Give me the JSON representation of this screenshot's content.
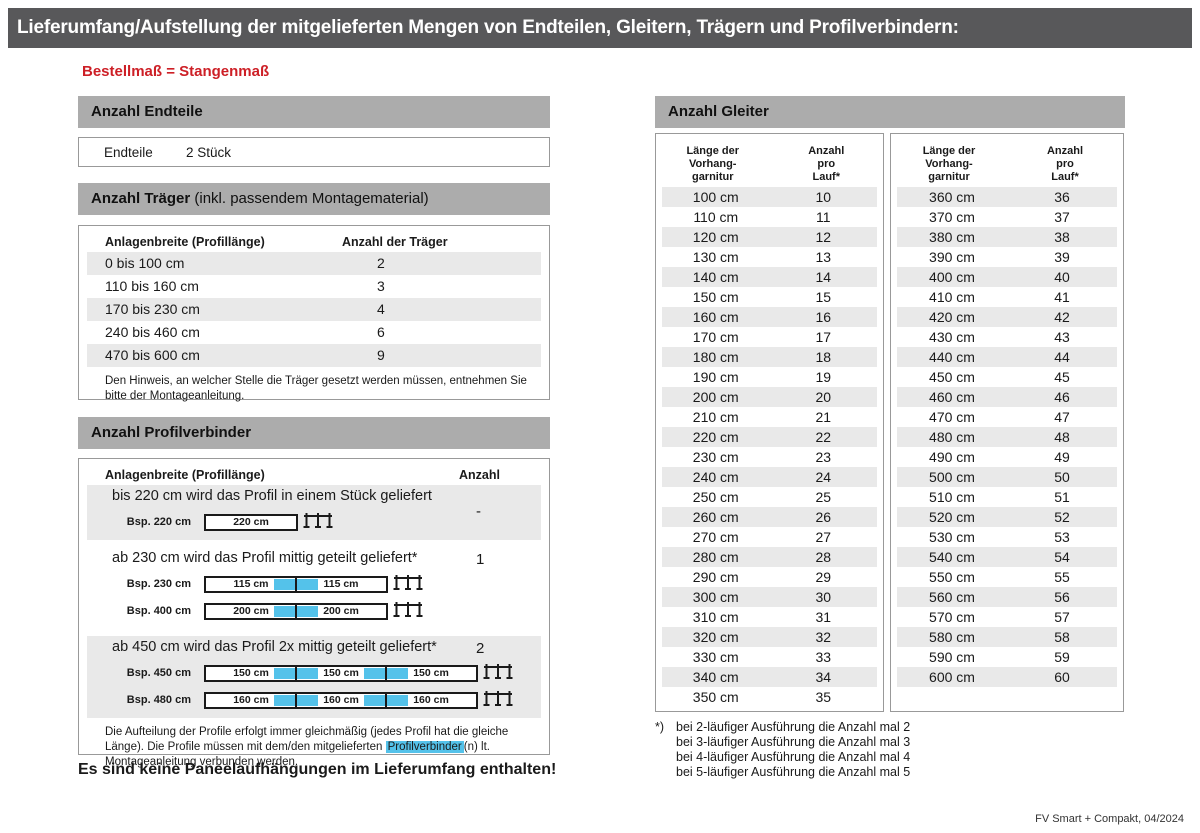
{
  "page": {
    "title": "Lieferumfang/Aufstellung der mitgelieferten Mengen von Endteilen, Gleitern, Trägern und Profilverbindern:",
    "subtitle": "Bestellmaß = Stangenmaß",
    "no_panel_note": "Es sind keine Paneelaufhängungen im Lieferumfang enthalten!",
    "footer": "FV Smart + Compakt, 04/2024"
  },
  "colors": {
    "title_bar_bg": "#58585a",
    "section_bar_bg": "#acacac",
    "row_stripe": "#e9e9e9",
    "accent_red": "#cd1f26",
    "connector_blue": "#54c2ea"
  },
  "endteile": {
    "section_title": "Anzahl Endteile",
    "label": "Endteile",
    "value": "2 Stück"
  },
  "traeger": {
    "section_title_bold": "Anzahl Träger",
    "section_title_rest": " (inkl. passendem Montagematerial)",
    "col1": "Anlagenbreite (Profillänge)",
    "col2": "Anzahl der Träger",
    "rows": [
      {
        "range": "0 bis 100 cm",
        "count": "2"
      },
      {
        "range": "110 bis 160 cm",
        "count": "3"
      },
      {
        "range": "170 bis 230 cm",
        "count": "4"
      },
      {
        "range": "240 bis 460 cm",
        "count": "6"
      },
      {
        "range": "470 bis 600 cm",
        "count": "9"
      }
    ],
    "note": "Den Hinweis, an welcher Stelle die Träger gesetzt werden müssen, entnehmen Sie bitte der Montageanleitung."
  },
  "profilverbinder": {
    "section_title": "Anzahl Profilverbinder",
    "col1": "Anlagenbreite (Profillänge)",
    "col2": "Anzahl",
    "rows": [
      {
        "description": "bis 220 cm wird das Profil in einem Stück geliefert",
        "count": "-",
        "examples": [
          {
            "label": "Bsp. 220 cm",
            "segments": [
              "220 cm"
            ]
          }
        ]
      },
      {
        "description": "ab 230 cm wird das Profil mittig geteilt geliefert*",
        "count": "1",
        "examples": [
          {
            "label": "Bsp. 230 cm",
            "segments": [
              "115 cm",
              "115 cm"
            ]
          },
          {
            "label": "Bsp. 400 cm",
            "segments": [
              "200 cm",
              "200 cm"
            ]
          }
        ]
      },
      {
        "description": "ab 450 cm wird das Profil 2x mittig geteilt geliefert*",
        "count": "2",
        "examples": [
          {
            "label": "Bsp. 450 cm",
            "segments": [
              "150 cm",
              "150 cm",
              "150 cm"
            ]
          },
          {
            "label": "Bsp. 480 cm",
            "segments": [
              "160 cm",
              "160 cm",
              "160 cm"
            ]
          }
        ]
      }
    ],
    "note_part1": "Die Aufteilung der Profile erfolgt immer gleichmäßig (jedes Profil hat die gleiche Länge). Die Profile müssen mit dem/den mitgelieferten ",
    "note_highlight": "Profilverbinder",
    "note_part2": "(n) lt. Montageanleitung verbunden werden."
  },
  "gleiter": {
    "section_title": "Anzahl Gleiter",
    "col1_lines": [
      "Länge der",
      "Vorhang-",
      "garnitur"
    ],
    "col2_lines": [
      "Anzahl",
      "pro",
      "Lauf*"
    ],
    "table1": [
      [
        "100 cm",
        "10"
      ],
      [
        "110 cm",
        "11"
      ],
      [
        "120 cm",
        "12"
      ],
      [
        "130 cm",
        "13"
      ],
      [
        "140 cm",
        "14"
      ],
      [
        "150 cm",
        "15"
      ],
      [
        "160 cm",
        "16"
      ],
      [
        "170 cm",
        "17"
      ],
      [
        "180 cm",
        "18"
      ],
      [
        "190 cm",
        "19"
      ],
      [
        "200 cm",
        "20"
      ],
      [
        "210 cm",
        "21"
      ],
      [
        "220 cm",
        "22"
      ],
      [
        "230 cm",
        "23"
      ],
      [
        "240 cm",
        "24"
      ],
      [
        "250 cm",
        "25"
      ],
      [
        "260 cm",
        "26"
      ],
      [
        "270 cm",
        "27"
      ],
      [
        "280 cm",
        "28"
      ],
      [
        "290 cm",
        "29"
      ],
      [
        "300 cm",
        "30"
      ],
      [
        "310 cm",
        "31"
      ],
      [
        "320 cm",
        "32"
      ],
      [
        "330 cm",
        "33"
      ],
      [
        "340 cm",
        "34"
      ],
      [
        "350 cm",
        "35"
      ]
    ],
    "table2": [
      [
        "360 cm",
        "36"
      ],
      [
        "370 cm",
        "37"
      ],
      [
        "380 cm",
        "38"
      ],
      [
        "390 cm",
        "39"
      ],
      [
        "400 cm",
        "40"
      ],
      [
        "410 cm",
        "41"
      ],
      [
        "420 cm",
        "42"
      ],
      [
        "430 cm",
        "43"
      ],
      [
        "440 cm",
        "44"
      ],
      [
        "450 cm",
        "45"
      ],
      [
        "460 cm",
        "46"
      ],
      [
        "470 cm",
        "47"
      ],
      [
        "480 cm",
        "48"
      ],
      [
        "490 cm",
        "49"
      ],
      [
        "500 cm",
        "50"
      ],
      [
        "510 cm",
        "51"
      ],
      [
        "520 cm",
        "52"
      ],
      [
        "530 cm",
        "53"
      ],
      [
        "540 cm",
        "54"
      ],
      [
        "550 cm",
        "55"
      ],
      [
        "560 cm",
        "56"
      ],
      [
        "570 cm",
        "57"
      ],
      [
        "580 cm",
        "58"
      ],
      [
        "590 cm",
        "59"
      ],
      [
        "600 cm",
        "60"
      ]
    ],
    "footnote_marker": "*)",
    "footnotes": [
      "bei 2-läufiger Ausführung die Anzahl mal 2",
      "bei 3-läufiger Ausführung die Anzahl mal 3",
      "bei 4-läufiger Ausführung die Anzahl mal 4",
      "bei 5-läufiger Ausführung die Anzahl mal 5"
    ]
  }
}
